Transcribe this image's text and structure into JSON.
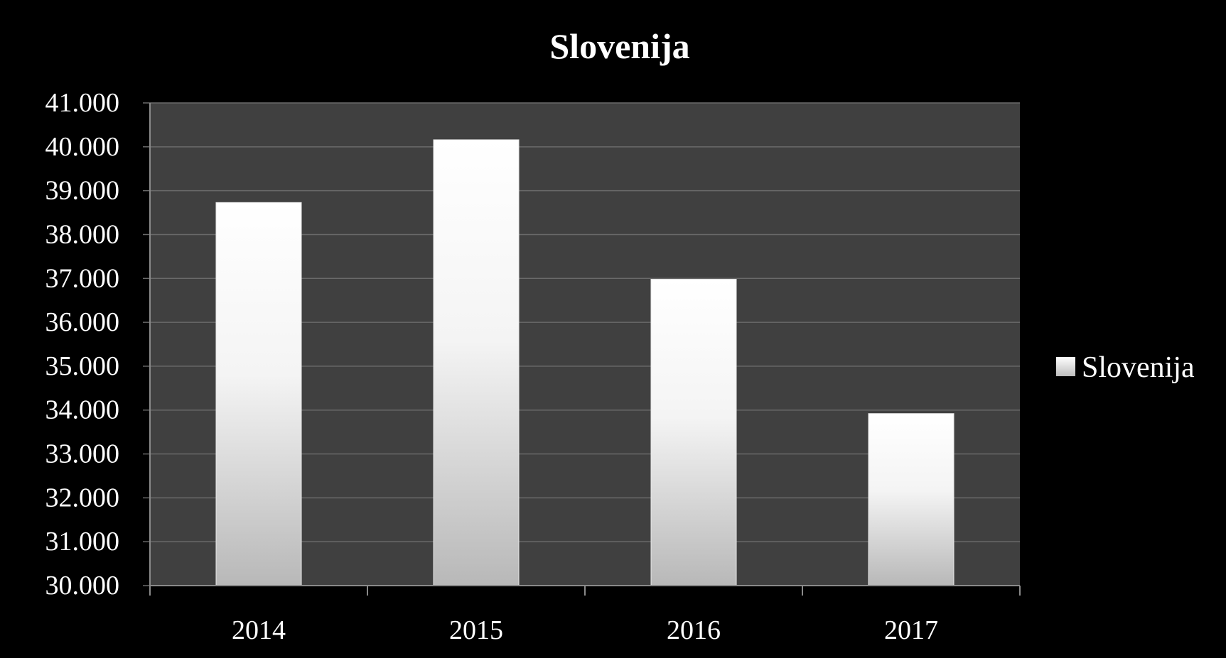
{
  "colors": {
    "background": "#000000",
    "plot_area": "#404040",
    "gridline": "#6a6a6a",
    "bar_top": "#ffffff",
    "bar_bottom": "#bdbdbd",
    "text": "#ffffff"
  },
  "chart_data": {
    "type": "bar",
    "title": "Slovenija",
    "categories": [
      "2014",
      "2015",
      "2016",
      "2017"
    ],
    "series": [
      {
        "name": "Slovenija",
        "values": [
          38730,
          40160,
          36980,
          33920
        ]
      }
    ],
    "ylim": [
      30000,
      41000
    ],
    "y_ticks": [
      30000,
      31000,
      32000,
      33000,
      34000,
      35000,
      36000,
      37000,
      38000,
      39000,
      40000,
      41000
    ],
    "y_tick_labels": [
      "30.000",
      "31.000",
      "32.000",
      "33.000",
      "34.000",
      "35.000",
      "36.000",
      "37.000",
      "38.000",
      "39.000",
      "40.000",
      "41.000"
    ],
    "xlabel": "",
    "ylabel": "",
    "grid": true,
    "legend": "right"
  }
}
